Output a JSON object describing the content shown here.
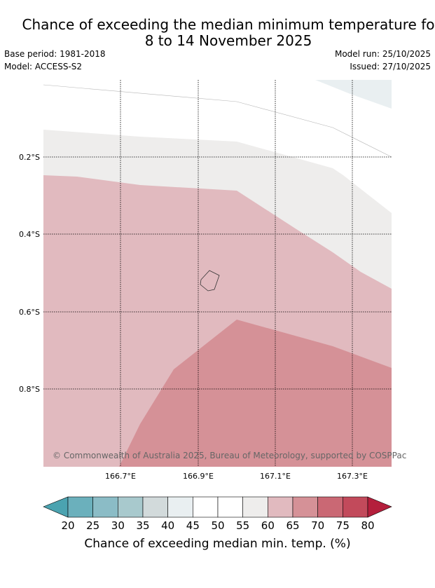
{
  "title": {
    "line1": "Chance of exceeding the median minimum temperature fo",
    "line2": "8 to 14 November 2025"
  },
  "meta": {
    "base_period": "Base period: 1981-2018",
    "model": "Model: ACCESS-S2",
    "model_run": "Model run: 25/10/2025",
    "issued": "Issued: 27/10/2025"
  },
  "map": {
    "lon_labels": [
      "166.7°E",
      "166.9°E",
      "167.1°E",
      "167.3°E"
    ],
    "lat_labels": [
      "0.2°S",
      "0.4°S",
      "0.6°S",
      "0.8°S"
    ],
    "copyright": "© Commonwealth of Australia 2025, Bureau of Meteorology, supported by COSPPac"
  },
  "colorbar": {
    "title": "Chance of exceeding median min. temp. (%)",
    "ticks": [
      "20",
      "25",
      "30",
      "35",
      "40",
      "45",
      "50",
      "55",
      "60",
      "65",
      "70",
      "75",
      "80"
    ],
    "under_color": "#4ba3b0",
    "over_color": "#b41f3c",
    "bins": [
      {
        "range": "20-25",
        "color": "#6bb0bc"
      },
      {
        "range": "25-30",
        "color": "#8bbcc6"
      },
      {
        "range": "30-35",
        "color": "#a8c9cd"
      },
      {
        "range": "35-40",
        "color": "#d2dadb"
      },
      {
        "range": "40-45",
        "color": "#e9eff1"
      },
      {
        "range": "45-50",
        "color": "#ffffff"
      },
      {
        "range": "50-55",
        "color": "#ffffff"
      },
      {
        "range": "55-60",
        "color": "#eeedec"
      },
      {
        "range": "60-65",
        "color": "#e1babf"
      },
      {
        "range": "65-70",
        "color": "#d59197"
      },
      {
        "range": "70-75",
        "color": "#ca6874"
      },
      {
        "range": "75-80",
        "color": "#c24a5b"
      }
    ]
  }
}
